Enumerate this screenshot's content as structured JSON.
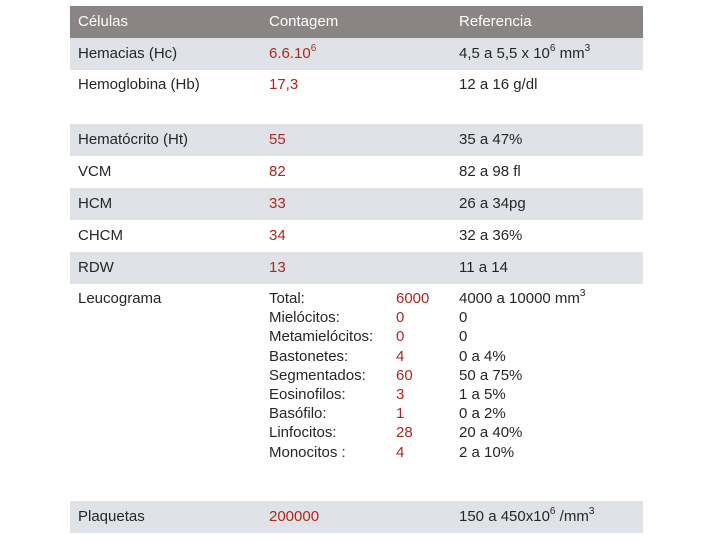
{
  "header": {
    "col1": "Células",
    "col2": "Contagem",
    "col3": "Referencia"
  },
  "rows": {
    "hemacias": {
      "name": "Hemacias (Hc)",
      "value": "6.6.10",
      "value_sup": "6",
      "ref": "4,5 a 5,5 x 10",
      "ref_sup1": "6",
      "ref_mid": " mm",
      "ref_sup2": "3"
    },
    "hemoglobina": {
      "name": "Hemoglobina (Hb)",
      "value": "17,3",
      "ref": "12 a 16 g/dl"
    },
    "hematocrito": {
      "name": "Hematócrito (Ht)",
      "value": "55",
      "ref": "35 a 47%"
    },
    "vcm": {
      "name": "VCM",
      "value": "82",
      "ref": "82 a 98 fl"
    },
    "hcm": {
      "name": "HCM",
      "value": "33",
      "ref": "26 a 34pg"
    },
    "chcm": {
      "name": "CHCM",
      "value": "34",
      "ref": "32 a 36%"
    },
    "rdw": {
      "name": "RDW",
      "value": "13",
      "ref": "11 a 14"
    },
    "leucograma": {
      "name": "Leucograma",
      "items": [
        {
          "label": "Total:",
          "value": "6000",
          "ref": "4000 a 10000 mm",
          "ref_sup": "3"
        },
        {
          "label": "Mielócitos:",
          "value": "0",
          "ref": "0"
        },
        {
          "label": "Metamielócitos:",
          "value": "0",
          "ref": "0"
        },
        {
          "label": "Bastonetes:",
          "value": "4",
          "ref": "0 a 4%"
        },
        {
          "label": "Segmentados:",
          "value": "60",
          "ref": "50 a 75%"
        },
        {
          "label": "Eosinofilos:",
          "value": "3",
          "ref": "1 a 5%"
        },
        {
          "label": "Basófilo:",
          "value": "1",
          "ref": "0 a 2%"
        },
        {
          "label": "Linfocitos:",
          "value": "28",
          "ref": "20 a 40%"
        },
        {
          "label": "Monocitos :",
          "value": "4",
          "ref": "2 a 10%"
        }
      ]
    },
    "plaquetas": {
      "name": "Plaquetas",
      "value": "200000",
      "ref": "150 a 450x10",
      "ref_sup": "6",
      "ref_end": " /mm",
      "ref_sup2": "3"
    }
  },
  "colors": {
    "header_bg": "#8a8584",
    "alt_row_bg": "#dfe3e7",
    "value_red": "#b3261e",
    "text": "#262626"
  }
}
